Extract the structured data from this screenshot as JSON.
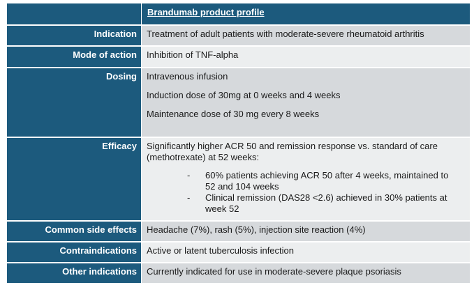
{
  "header": {
    "title": "Brandumab product profile"
  },
  "rows": {
    "indication": {
      "label": "Indication",
      "value": "Treatment of adult patients with moderate-severe rheumatoid arthritis"
    },
    "mode": {
      "label": "Mode of action",
      "value": "Inhibition of TNF-alpha"
    },
    "dosing": {
      "label": "Dosing",
      "lines": [
        "Intravenous infusion",
        "Induction dose of 30mg at 0 weeks and 4 weeks",
        "Maintenance dose of 30 mg every 8 weeks"
      ]
    },
    "efficacy": {
      "label": "Efficacy",
      "intro": "Significantly higher ACR 50 and remission response vs. standard of care (methotrexate) at 52 weeks:",
      "bullets": [
        "60% patients achieving ACR 50 after 4 weeks, maintained to 52 and 104 weeks",
        "Clinical remission (DAS28 <2.6) achieved in 30% patients at week 52"
      ],
      "bullet_marker": "-"
    },
    "side_effects": {
      "label": "Common side effects",
      "value": "Headache (7%), rash (5%), injection site reaction (4%)"
    },
    "contra": {
      "label": "Contraindications",
      "value": "Active or latent tuberculosis infection"
    },
    "other": {
      "label": "Other indications",
      "value": "Currently indicated for use in moderate-severe plaque psoriasis"
    }
  },
  "colors": {
    "label_bg": "#1c5a7d",
    "value_bg": "#d6d9dc",
    "value_bg_light": "#eceeef"
  }
}
